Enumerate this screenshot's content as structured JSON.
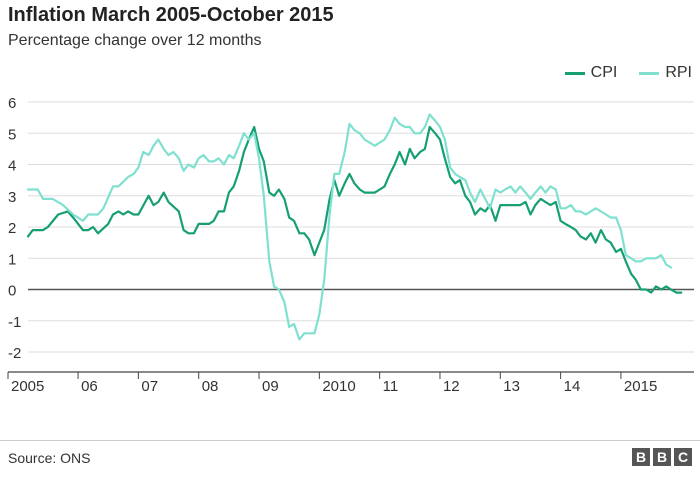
{
  "header": {
    "title": "Inflation March 2005-October 2015",
    "subtitle": "Percentage change over 12 months"
  },
  "footer": {
    "source": "Source: ONS",
    "logo_letters": [
      "B",
      "B",
      "C"
    ]
  },
  "chart_data": {
    "type": "line",
    "title": "Inflation March 2005-October 2015",
    "subtitle": "Percentage change over 12 months",
    "xlabel": "",
    "ylabel": "",
    "xlim": [
      2005.17,
      2015.83
    ],
    "ylim": [
      -2,
      6
    ],
    "yticks": [
      6,
      5,
      4,
      3,
      2,
      1,
      0,
      -1,
      -2
    ],
    "xticks": [
      {
        "x": 2005,
        "label": "2005"
      },
      {
        "x": 2006,
        "label": "06"
      },
      {
        "x": 2007,
        "label": "07"
      },
      {
        "x": 2008,
        "label": "08"
      },
      {
        "x": 2009,
        "label": "09"
      },
      {
        "x": 2010,
        "label": "2010"
      },
      {
        "x": 2011,
        "label": "11"
      },
      {
        "x": 2012,
        "label": "12"
      },
      {
        "x": 2013,
        "label": "13"
      },
      {
        "x": 2014,
        "label": "14"
      },
      {
        "x": 2015,
        "label": "2015"
      }
    ],
    "grid": true,
    "legend_position": "top-right",
    "series": [
      {
        "name": "CPI",
        "color": "#159f72",
        "points": [
          [
            2005.17,
            1.7
          ],
          [
            2005.25,
            1.9
          ],
          [
            2005.42,
            1.9
          ],
          [
            2005.5,
            2.0
          ],
          [
            2005.67,
            2.4
          ],
          [
            2005.83,
            2.5
          ],
          [
            2005.92,
            2.3
          ],
          [
            2006.08,
            1.9
          ],
          [
            2006.17,
            1.9
          ],
          [
            2006.25,
            2.0
          ],
          [
            2006.33,
            1.8
          ],
          [
            2006.5,
            2.1
          ],
          [
            2006.58,
            2.4
          ],
          [
            2006.67,
            2.5
          ],
          [
            2006.75,
            2.4
          ],
          [
            2006.83,
            2.5
          ],
          [
            2006.92,
            2.4
          ],
          [
            2007.0,
            2.4
          ],
          [
            2007.17,
            3.0
          ],
          [
            2007.25,
            2.7
          ],
          [
            2007.33,
            2.8
          ],
          [
            2007.42,
            3.1
          ],
          [
            2007.5,
            2.8
          ],
          [
            2007.67,
            2.5
          ],
          [
            2007.75,
            1.9
          ],
          [
            2007.83,
            1.8
          ],
          [
            2007.92,
            1.8
          ],
          [
            2008.0,
            2.1
          ],
          [
            2008.17,
            2.1
          ],
          [
            2008.25,
            2.2
          ],
          [
            2008.33,
            2.5
          ],
          [
            2008.42,
            2.5
          ],
          [
            2008.5,
            3.1
          ],
          [
            2008.58,
            3.3
          ],
          [
            2008.67,
            3.8
          ],
          [
            2008.75,
            4.4
          ],
          [
            2008.83,
            4.8
          ],
          [
            2008.92,
            5.2
          ],
          [
            2009.0,
            4.5
          ],
          [
            2009.08,
            4.1
          ],
          [
            2009.17,
            3.1
          ],
          [
            2009.25,
            3.0
          ],
          [
            2009.33,
            3.2
          ],
          [
            2009.42,
            2.9
          ],
          [
            2009.5,
            2.3
          ],
          [
            2009.58,
            2.2
          ],
          [
            2009.67,
            1.8
          ],
          [
            2009.75,
            1.8
          ],
          [
            2009.83,
            1.6
          ],
          [
            2009.92,
            1.1
          ],
          [
            2010.0,
            1.5
          ],
          [
            2010.08,
            1.9
          ],
          [
            2010.17,
            2.9
          ],
          [
            2010.25,
            3.5
          ],
          [
            2010.33,
            3.0
          ],
          [
            2010.42,
            3.4
          ],
          [
            2010.5,
            3.7
          ],
          [
            2010.58,
            3.4
          ],
          [
            2010.67,
            3.2
          ],
          [
            2010.75,
            3.1
          ],
          [
            2010.92,
            3.1
          ],
          [
            2011.0,
            3.2
          ],
          [
            2011.08,
            3.3
          ],
          [
            2011.17,
            3.7
          ],
          [
            2011.25,
            4.0
          ],
          [
            2011.33,
            4.4
          ],
          [
            2011.42,
            4.0
          ],
          [
            2011.5,
            4.5
          ],
          [
            2011.58,
            4.2
          ],
          [
            2011.67,
            4.4
          ],
          [
            2011.75,
            4.5
          ],
          [
            2011.83,
            5.2
          ],
          [
            2011.92,
            5.0
          ],
          [
            2012.0,
            4.8
          ],
          [
            2012.08,
            4.2
          ],
          [
            2012.17,
            3.6
          ],
          [
            2012.25,
            3.4
          ],
          [
            2012.33,
            3.5
          ],
          [
            2012.42,
            3.0
          ],
          [
            2012.5,
            2.8
          ],
          [
            2012.58,
            2.4
          ],
          [
            2012.67,
            2.6
          ],
          [
            2012.75,
            2.5
          ],
          [
            2012.83,
            2.7
          ],
          [
            2012.92,
            2.2
          ],
          [
            2013.0,
            2.7
          ],
          [
            2013.17,
            2.7
          ],
          [
            2013.33,
            2.7
          ],
          [
            2013.42,
            2.8
          ],
          [
            2013.5,
            2.4
          ],
          [
            2013.58,
            2.7
          ],
          [
            2013.67,
            2.9
          ],
          [
            2013.75,
            2.8
          ],
          [
            2013.83,
            2.7
          ],
          [
            2013.92,
            2.8
          ],
          [
            2014.0,
            2.2
          ],
          [
            2014.08,
            2.1
          ],
          [
            2014.17,
            2.0
          ],
          [
            2014.25,
            1.9
          ],
          [
            2014.33,
            1.7
          ],
          [
            2014.42,
            1.6
          ],
          [
            2014.5,
            1.8
          ],
          [
            2014.58,
            1.5
          ],
          [
            2014.67,
            1.9
          ],
          [
            2014.75,
            1.6
          ],
          [
            2014.83,
            1.5
          ],
          [
            2014.92,
            1.2
          ],
          [
            2015.0,
            1.3
          ],
          [
            2015.08,
            0.9
          ],
          [
            2015.17,
            0.5
          ],
          [
            2015.25,
            0.3
          ],
          [
            2015.33,
            0.0
          ],
          [
            2015.42,
            0.0
          ],
          [
            2015.5,
            -0.1
          ],
          [
            2015.58,
            0.1
          ],
          [
            2015.67,
            0.0
          ],
          [
            2015.75,
            0.1
          ],
          [
            2015.83,
            0.0
          ],
          [
            2015.92,
            -0.1
          ],
          [
            2016.0,
            -0.1
          ]
        ]
      },
      {
        "name": "RPI",
        "color": "#7fe0d0",
        "points": [
          [
            2005.17,
            3.2
          ],
          [
            2005.33,
            3.2
          ],
          [
            2005.42,
            2.9
          ],
          [
            2005.58,
            2.9
          ],
          [
            2005.75,
            2.7
          ],
          [
            2005.92,
            2.4
          ],
          [
            2006.08,
            2.2
          ],
          [
            2006.17,
            2.4
          ],
          [
            2006.33,
            2.4
          ],
          [
            2006.42,
            2.6
          ],
          [
            2006.58,
            3.3
          ],
          [
            2006.67,
            3.3
          ],
          [
            2006.83,
            3.6
          ],
          [
            2006.92,
            3.7
          ],
          [
            2007.0,
            3.9
          ],
          [
            2007.08,
            4.4
          ],
          [
            2007.17,
            4.3
          ],
          [
            2007.25,
            4.6
          ],
          [
            2007.33,
            4.8
          ],
          [
            2007.42,
            4.5
          ],
          [
            2007.5,
            4.3
          ],
          [
            2007.58,
            4.4
          ],
          [
            2007.67,
            4.2
          ],
          [
            2007.75,
            3.8
          ],
          [
            2007.83,
            4.0
          ],
          [
            2007.92,
            3.9
          ],
          [
            2008.0,
            4.2
          ],
          [
            2008.08,
            4.3
          ],
          [
            2008.17,
            4.1
          ],
          [
            2008.25,
            4.1
          ],
          [
            2008.33,
            4.2
          ],
          [
            2008.42,
            4.0
          ],
          [
            2008.5,
            4.3
          ],
          [
            2008.58,
            4.2
          ],
          [
            2008.67,
            4.6
          ],
          [
            2008.75,
            5.0
          ],
          [
            2008.83,
            4.8
          ],
          [
            2008.92,
            5.0
          ],
          [
            2009.0,
            4.2
          ],
          [
            2009.08,
            3.0
          ],
          [
            2009.17,
            0.9
          ],
          [
            2009.25,
            0.1
          ],
          [
            2009.33,
            0.0
          ],
          [
            2009.42,
            -0.4
          ],
          [
            2009.5,
            -1.2
          ],
          [
            2009.58,
            -1.1
          ],
          [
            2009.67,
            -1.6
          ],
          [
            2009.75,
            -1.4
          ],
          [
            2009.83,
            -1.4
          ],
          [
            2009.92,
            -1.4
          ],
          [
            2010.0,
            -0.8
          ],
          [
            2010.08,
            0.3
          ],
          [
            2010.17,
            2.4
          ],
          [
            2010.25,
            3.7
          ],
          [
            2010.33,
            3.7
          ],
          [
            2010.42,
            4.4
          ],
          [
            2010.5,
            5.3
          ],
          [
            2010.58,
            5.1
          ],
          [
            2010.67,
            5.0
          ],
          [
            2010.75,
            4.8
          ],
          [
            2010.92,
            4.6
          ],
          [
            2011.0,
            4.7
          ],
          [
            2011.08,
            4.8
          ],
          [
            2011.17,
            5.1
          ],
          [
            2011.25,
            5.5
          ],
          [
            2011.33,
            5.3
          ],
          [
            2011.42,
            5.2
          ],
          [
            2011.5,
            5.2
          ],
          [
            2011.58,
            5.0
          ],
          [
            2011.67,
            5.0
          ],
          [
            2011.75,
            5.2
          ],
          [
            2011.83,
            5.6
          ],
          [
            2011.92,
            5.4
          ],
          [
            2012.0,
            5.2
          ],
          [
            2012.08,
            4.8
          ],
          [
            2012.17,
            3.9
          ],
          [
            2012.25,
            3.7
          ],
          [
            2012.33,
            3.6
          ],
          [
            2012.42,
            3.5
          ],
          [
            2012.5,
            3.1
          ],
          [
            2012.58,
            2.8
          ],
          [
            2012.67,
            3.2
          ],
          [
            2012.75,
            2.9
          ],
          [
            2012.83,
            2.6
          ],
          [
            2012.92,
            3.2
          ],
          [
            2013.0,
            3.1
          ],
          [
            2013.08,
            3.2
          ],
          [
            2013.17,
            3.3
          ],
          [
            2013.25,
            3.1
          ],
          [
            2013.33,
            3.3
          ],
          [
            2013.42,
            3.1
          ],
          [
            2013.5,
            2.9
          ],
          [
            2013.58,
            3.1
          ],
          [
            2013.67,
            3.3
          ],
          [
            2013.75,
            3.1
          ],
          [
            2013.83,
            3.3
          ],
          [
            2013.92,
            3.2
          ],
          [
            2014.0,
            2.6
          ],
          [
            2014.08,
            2.6
          ],
          [
            2014.17,
            2.7
          ],
          [
            2014.25,
            2.5
          ],
          [
            2014.33,
            2.5
          ],
          [
            2014.42,
            2.4
          ],
          [
            2014.5,
            2.5
          ],
          [
            2014.58,
            2.6
          ],
          [
            2014.67,
            2.5
          ],
          [
            2014.75,
            2.4
          ],
          [
            2014.83,
            2.3
          ],
          [
            2014.92,
            2.3
          ],
          [
            2015.0,
            1.9
          ],
          [
            2015.08,
            1.1
          ],
          [
            2015.17,
            1.0
          ],
          [
            2015.25,
            0.9
          ],
          [
            2015.33,
            0.9
          ],
          [
            2015.42,
            1.0
          ],
          [
            2015.5,
            1.0
          ],
          [
            2015.58,
            1.0
          ],
          [
            2015.67,
            1.1
          ],
          [
            2015.75,
            0.8
          ],
          [
            2015.83,
            0.7
          ]
        ]
      }
    ]
  }
}
